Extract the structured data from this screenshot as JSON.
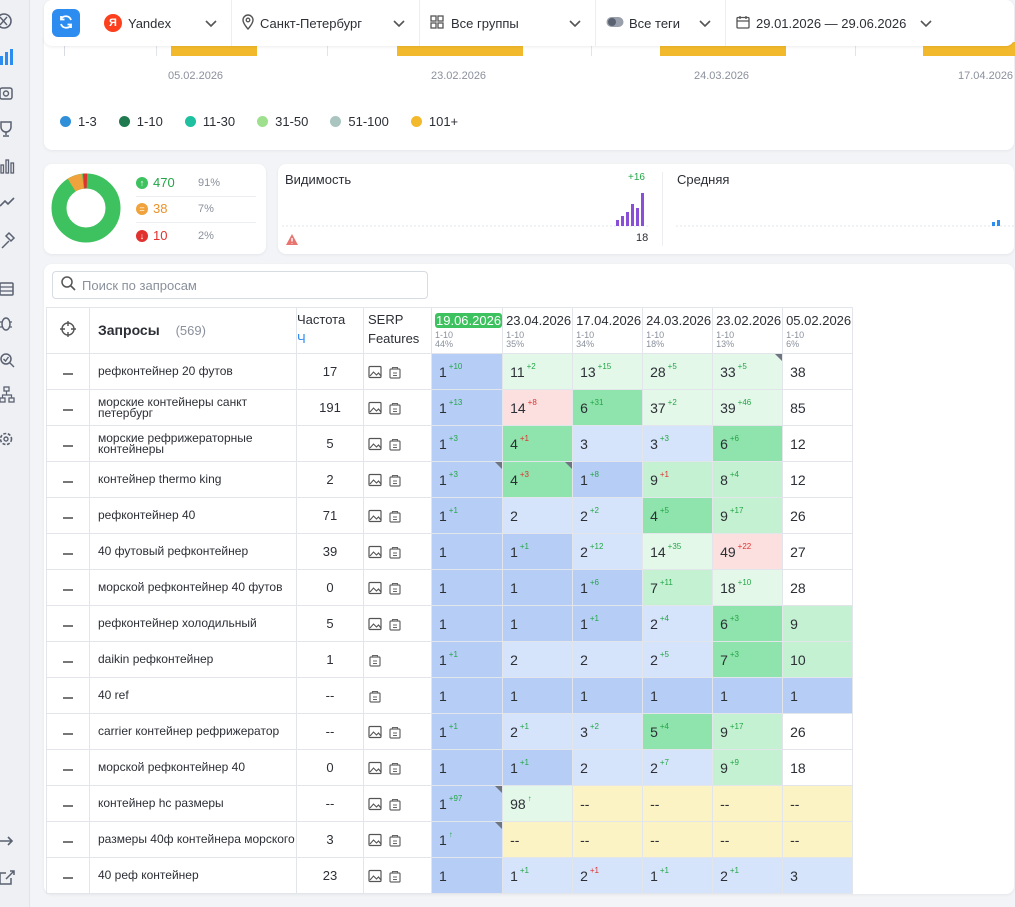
{
  "filters": {
    "engine": "Yandex",
    "engine_logo": "Я",
    "city": "Санкт-Петербург",
    "groups": "Все группы",
    "tags": "Все теги",
    "dates": "29.01.2026 — 29.06.2026"
  },
  "chart": {
    "x_ticks": [
      "05.02.2026",
      "23.02.2026",
      "24.03.2026",
      "17.04.2026"
    ],
    "legend": [
      {
        "label": "1-3",
        "color": "#2f8fd8"
      },
      {
        "label": "1-10",
        "color": "#1f7a4f"
      },
      {
        "label": "11-30",
        "color": "#1ec0a0"
      },
      {
        "label": "31-50",
        "color": "#9ee08e"
      },
      {
        "label": "51-100",
        "color": "#aac4c0"
      },
      {
        "label": "101+",
        "color": "#f3b92d"
      }
    ]
  },
  "summary": {
    "up": {
      "count": "470",
      "pct": "91%"
    },
    "same": {
      "count": "38",
      "pct": "7%"
    },
    "down": {
      "count": "10",
      "pct": "2%"
    },
    "visibility": {
      "title": "Видимость",
      "delta": "+16",
      "value": "18"
    },
    "average": {
      "title": "Средняя"
    }
  },
  "search": {
    "placeholder": "Поиск по запросам"
  },
  "table": {
    "queries_label": "Запросы",
    "queries_count": "(569)",
    "freq_label": "Частота",
    "freq_sub": "Ч",
    "serp_label_1": "SERP",
    "serp_label_2": "Features",
    "dates": [
      {
        "date": "19.06.2026",
        "range": "1-10",
        "pct": "44%"
      },
      {
        "date": "23.04.2026",
        "range": "1-10",
        "pct": "35%"
      },
      {
        "date": "17.04.2026",
        "range": "1-10",
        "pct": "34%"
      },
      {
        "date": "24.03.2026",
        "range": "1-10",
        "pct": "18%"
      },
      {
        "date": "23.02.2026",
        "range": "1-10",
        "pct": "13%"
      },
      {
        "date": "05.02.2026",
        "range": "1-10",
        "pct": "6%"
      }
    ],
    "rows": [
      {
        "q": "рефконтейнер 20 футов",
        "f": "17",
        "serp": 2,
        "p": [
          {
            "v": "1",
            "d": "+10",
            "dir": "up",
            "bg": "blue"
          },
          {
            "v": "11",
            "d": "+2",
            "dir": "up",
            "bg": "vlgreen"
          },
          {
            "v": "13",
            "d": "+15",
            "dir": "up",
            "bg": "vlgreen"
          },
          {
            "v": "28",
            "d": "+5",
            "dir": "up",
            "bg": "vlgreen"
          },
          {
            "v": "33",
            "d": "+5",
            "dir": "up",
            "bg": "vlgreen",
            "c": 1
          },
          {
            "v": "38",
            "d": "",
            "dir": "",
            "bg": "white"
          }
        ]
      },
      {
        "q": "морские контейнеры санкт петербург",
        "f": "191",
        "serp": 2,
        "p": [
          {
            "v": "1",
            "d": "+13",
            "dir": "up",
            "bg": "blue"
          },
          {
            "v": "14",
            "d": "+8",
            "dir": "dn",
            "bg": "pink"
          },
          {
            "v": "6",
            "d": "+31",
            "dir": "up",
            "bg": "green"
          },
          {
            "v": "37",
            "d": "+2",
            "dir": "up",
            "bg": "vlgreen"
          },
          {
            "v": "39",
            "d": "+46",
            "dir": "up",
            "bg": "vlgreen"
          },
          {
            "v": "85",
            "d": "",
            "dir": "",
            "bg": "white"
          }
        ]
      },
      {
        "q": "морские рефрижераторные контейнеры",
        "f": "5",
        "serp": 2,
        "p": [
          {
            "v": "1",
            "d": "+3",
            "dir": "up",
            "bg": "blue"
          },
          {
            "v": "4",
            "d": "+1",
            "dir": "dn",
            "bg": "green"
          },
          {
            "v": "3",
            "d": "",
            "dir": "",
            "bg": "lblue"
          },
          {
            "v": "3",
            "d": "+3",
            "dir": "up",
            "bg": "lblue"
          },
          {
            "v": "6",
            "d": "+6",
            "dir": "up",
            "bg": "green"
          },
          {
            "v": "12",
            "d": "",
            "dir": "",
            "bg": "white"
          }
        ]
      },
      {
        "q": "контейнер thermo king",
        "f": "2",
        "serp": 2,
        "p": [
          {
            "v": "1",
            "d": "+3",
            "dir": "up",
            "bg": "blue",
            "c": 1
          },
          {
            "v": "4",
            "d": "+3",
            "dir": "dn",
            "bg": "green",
            "c": 1
          },
          {
            "v": "1",
            "d": "+8",
            "dir": "up",
            "bg": "blue"
          },
          {
            "v": "9",
            "d": "+1",
            "dir": "dn",
            "bg": "lgreen"
          },
          {
            "v": "8",
            "d": "+4",
            "dir": "up",
            "bg": "lgreen"
          },
          {
            "v": "12",
            "d": "",
            "dir": "",
            "bg": "white"
          }
        ]
      },
      {
        "q": "рефконтейнер 40",
        "f": "71",
        "serp": 2,
        "p": [
          {
            "v": "1",
            "d": "+1",
            "dir": "up",
            "bg": "blue"
          },
          {
            "v": "2",
            "d": "",
            "dir": "",
            "bg": "lblue"
          },
          {
            "v": "2",
            "d": "+2",
            "dir": "up",
            "bg": "lblue"
          },
          {
            "v": "4",
            "d": "+5",
            "dir": "up",
            "bg": "green"
          },
          {
            "v": "9",
            "d": "+17",
            "dir": "up",
            "bg": "lgreen"
          },
          {
            "v": "26",
            "d": "",
            "dir": "",
            "bg": "white"
          }
        ]
      },
      {
        "q": "40 футовый рефконтейнер",
        "f": "39",
        "serp": 2,
        "p": [
          {
            "v": "1",
            "d": "",
            "dir": "",
            "bg": "blue"
          },
          {
            "v": "1",
            "d": "+1",
            "dir": "up",
            "bg": "blue"
          },
          {
            "v": "2",
            "d": "+12",
            "dir": "up",
            "bg": "lblue"
          },
          {
            "v": "14",
            "d": "+35",
            "dir": "up",
            "bg": "vlgreen"
          },
          {
            "v": "49",
            "d": "+22",
            "dir": "dn",
            "bg": "pink"
          },
          {
            "v": "27",
            "d": "",
            "dir": "",
            "bg": "white"
          }
        ]
      },
      {
        "q": "морской рефконтейнер 40 футов",
        "f": "0",
        "serp": 2,
        "p": [
          {
            "v": "1",
            "d": "",
            "dir": "",
            "bg": "blue"
          },
          {
            "v": "1",
            "d": "",
            "dir": "",
            "bg": "blue"
          },
          {
            "v": "1",
            "d": "+6",
            "dir": "up",
            "bg": "blue"
          },
          {
            "v": "7",
            "d": "+11",
            "dir": "up",
            "bg": "lgreen"
          },
          {
            "v": "18",
            "d": "+10",
            "dir": "up",
            "bg": "vlgreen"
          },
          {
            "v": "28",
            "d": "",
            "dir": "",
            "bg": "white"
          }
        ]
      },
      {
        "q": "рефконтейнер холодильный",
        "f": "5",
        "serp": 2,
        "p": [
          {
            "v": "1",
            "d": "",
            "dir": "",
            "bg": "blue"
          },
          {
            "v": "1",
            "d": "",
            "dir": "",
            "bg": "blue"
          },
          {
            "v": "1",
            "d": "+1",
            "dir": "up",
            "bg": "blue"
          },
          {
            "v": "2",
            "d": "+4",
            "dir": "up",
            "bg": "lblue"
          },
          {
            "v": "6",
            "d": "+3",
            "dir": "up",
            "bg": "green"
          },
          {
            "v": "9",
            "d": "",
            "dir": "",
            "bg": "lgreen"
          }
        ]
      },
      {
        "q": "daikin рефконтейнер",
        "f": "1",
        "serp": 1,
        "p": [
          {
            "v": "1",
            "d": "+1",
            "dir": "up",
            "bg": "blue"
          },
          {
            "v": "2",
            "d": "",
            "dir": "",
            "bg": "lblue"
          },
          {
            "v": "2",
            "d": "",
            "dir": "",
            "bg": "lblue"
          },
          {
            "v": "2",
            "d": "+5",
            "dir": "up",
            "bg": "lblue"
          },
          {
            "v": "7",
            "d": "+3",
            "dir": "up",
            "bg": "green"
          },
          {
            "v": "10",
            "d": "",
            "dir": "",
            "bg": "lgreen"
          }
        ]
      },
      {
        "q": "40 ref",
        "f": "--",
        "serp": 1,
        "p": [
          {
            "v": "1",
            "d": "",
            "dir": "",
            "bg": "blue"
          },
          {
            "v": "1",
            "d": "",
            "dir": "",
            "bg": "blue"
          },
          {
            "v": "1",
            "d": "",
            "dir": "",
            "bg": "blue"
          },
          {
            "v": "1",
            "d": "",
            "dir": "",
            "bg": "blue"
          },
          {
            "v": "1",
            "d": "",
            "dir": "",
            "bg": "blue"
          },
          {
            "v": "1",
            "d": "",
            "dir": "",
            "bg": "blue"
          }
        ]
      },
      {
        "q": "carrier контейнер рефрижератор",
        "f": "--",
        "serp": 2,
        "p": [
          {
            "v": "1",
            "d": "+1",
            "dir": "up",
            "bg": "blue"
          },
          {
            "v": "2",
            "d": "+1",
            "dir": "up",
            "bg": "lblue"
          },
          {
            "v": "3",
            "d": "+2",
            "dir": "up",
            "bg": "lblue"
          },
          {
            "v": "5",
            "d": "+4",
            "dir": "up",
            "bg": "green"
          },
          {
            "v": "9",
            "d": "+17",
            "dir": "up",
            "bg": "lgreen"
          },
          {
            "v": "26",
            "d": "",
            "dir": "",
            "bg": "white"
          }
        ]
      },
      {
        "q": "морской рефконтейнер 40",
        "f": "0",
        "serp": 2,
        "p": [
          {
            "v": "1",
            "d": "",
            "dir": "",
            "bg": "blue"
          },
          {
            "v": "1",
            "d": "+1",
            "dir": "up",
            "bg": "blue"
          },
          {
            "v": "2",
            "d": "",
            "dir": "",
            "bg": "lblue"
          },
          {
            "v": "2",
            "d": "+7",
            "dir": "up",
            "bg": "lblue"
          },
          {
            "v": "9",
            "d": "+9",
            "dir": "up",
            "bg": "lgreen"
          },
          {
            "v": "18",
            "d": "",
            "dir": "",
            "bg": "white"
          }
        ]
      },
      {
        "q": "контейнер hc размеры",
        "f": "--",
        "serp": 2,
        "p": [
          {
            "v": "1",
            "d": "+97",
            "dir": "up",
            "bg": "blue",
            "c": 1
          },
          {
            "v": "98",
            "d": "↑",
            "dir": "up",
            "bg": "vlgreen"
          },
          {
            "v": "--",
            "d": "",
            "dir": "",
            "bg": "yellow"
          },
          {
            "v": "--",
            "d": "",
            "dir": "",
            "bg": "yellow"
          },
          {
            "v": "--",
            "d": "",
            "dir": "",
            "bg": "yellow"
          },
          {
            "v": "--",
            "d": "",
            "dir": "",
            "bg": "yellow"
          }
        ]
      },
      {
        "q": "размеры 40ф контейнера морского",
        "f": "3",
        "serp": 2,
        "p": [
          {
            "v": "1",
            "d": "↑",
            "dir": "up",
            "bg": "blue",
            "c": 1
          },
          {
            "v": "--",
            "d": "",
            "dir": "",
            "bg": "yellow"
          },
          {
            "v": "--",
            "d": "",
            "dir": "",
            "bg": "yellow"
          },
          {
            "v": "--",
            "d": "",
            "dir": "",
            "bg": "yellow"
          },
          {
            "v": "--",
            "d": "",
            "dir": "",
            "bg": "yellow"
          },
          {
            "v": "--",
            "d": "",
            "dir": "",
            "bg": "yellow"
          }
        ]
      },
      {
        "q": "40 реф контейнер",
        "f": "23",
        "serp": 2,
        "p": [
          {
            "v": "1",
            "d": "",
            "dir": "",
            "bg": "blue"
          },
          {
            "v": "1",
            "d": "+1",
            "dir": "up",
            "bg": "lblue"
          },
          {
            "v": "2",
            "d": "+1",
            "dir": "dn",
            "bg": "lblue"
          },
          {
            "v": "1",
            "d": "+1",
            "dir": "up",
            "bg": "lblue"
          },
          {
            "v": "2",
            "d": "+1",
            "dir": "up",
            "bg": "lblue"
          },
          {
            "v": "3",
            "d": "",
            "dir": "",
            "bg": "lblue"
          }
        ]
      }
    ]
  }
}
